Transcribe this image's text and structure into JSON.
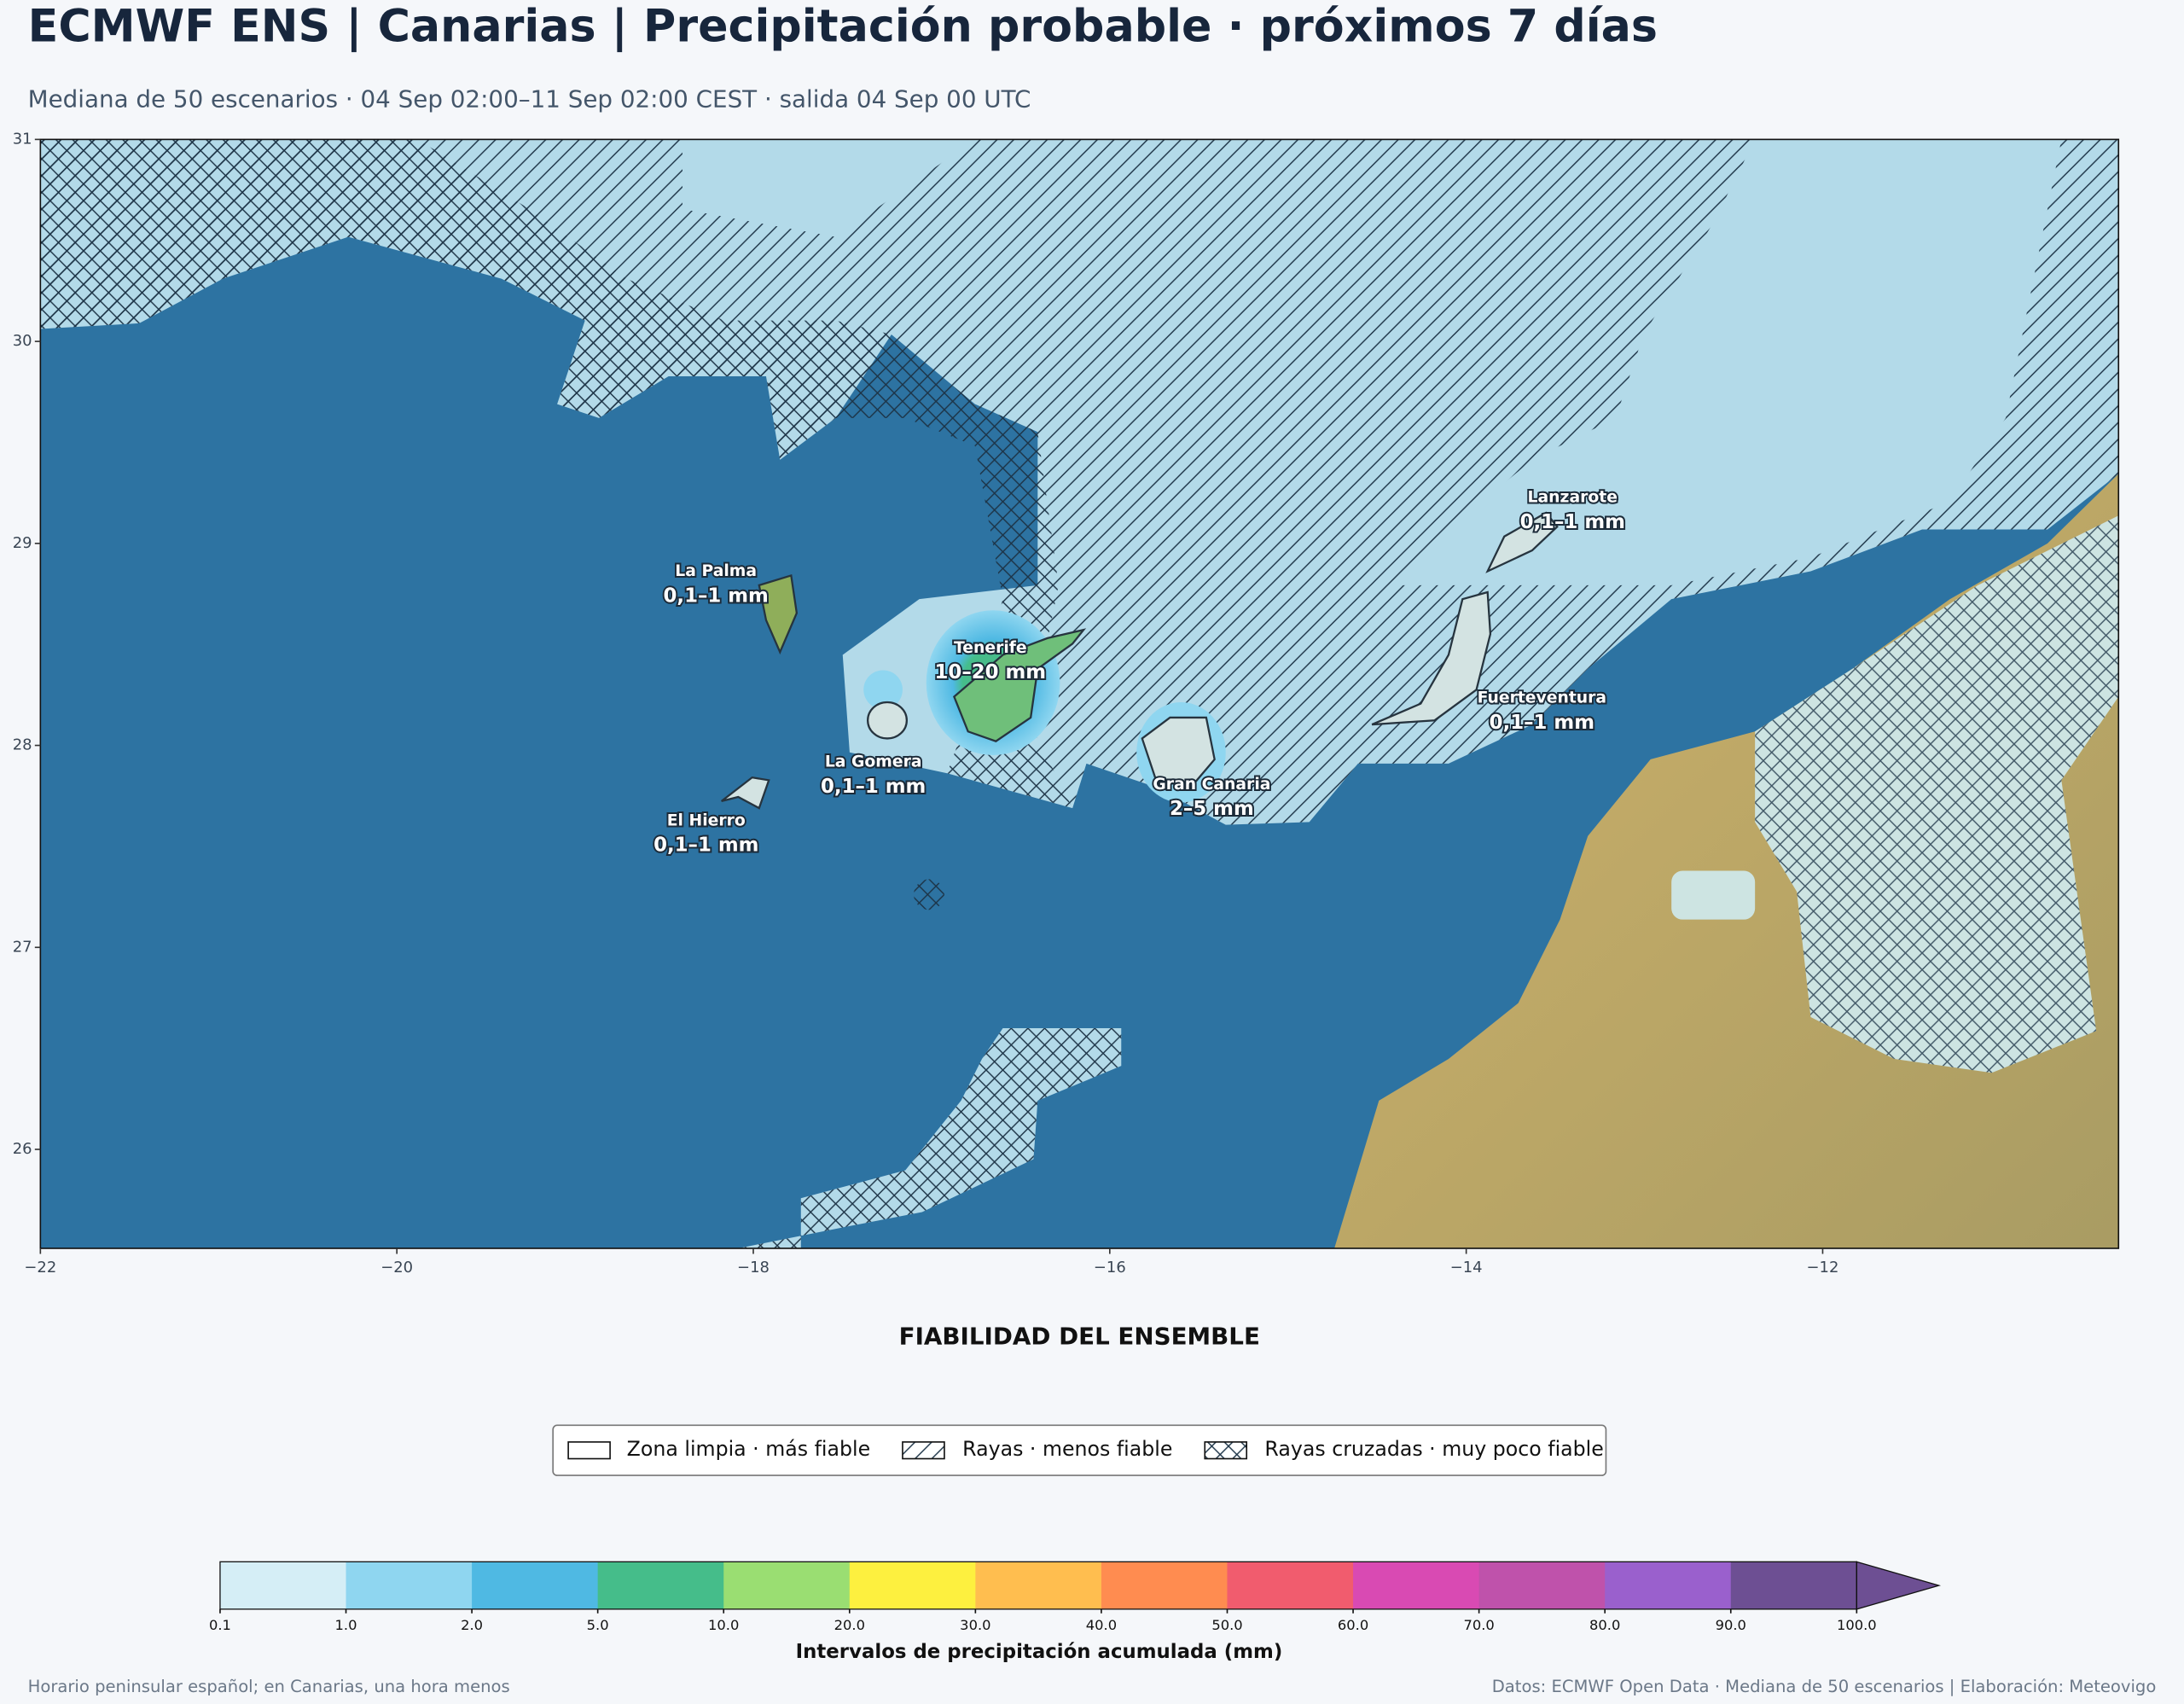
{
  "header": {
    "title": "ECMWF ENS | Canarias | Precipitación probable · próximos 7 días",
    "subtitle": "Mediana de 50 escenarios · 04 Sep 02:00–11 Sep 02:00 CEST · salida 04 Sep 00 UTC"
  },
  "map": {
    "xlim": [
      -22,
      -10.34
    ],
    "ylim": [
      25.51,
      31
    ],
    "xticks": [
      {
        "value": -22,
        "label": "−22"
      },
      {
        "value": -20,
        "label": "−20"
      },
      {
        "value": -18,
        "label": "−18"
      },
      {
        "value": -16,
        "label": "−16"
      },
      {
        "value": -14,
        "label": "−14"
      },
      {
        "value": -12,
        "label": "−12"
      }
    ],
    "yticks": [
      26,
      27,
      28,
      29,
      30,
      31
    ],
    "islands": [
      {
        "name": "La Palma",
        "value_label": "0,1–1 mm"
      },
      {
        "name": "Tenerife",
        "value_label": "10–20 mm"
      },
      {
        "name": "La Gomera",
        "value_label": "0,1–1 mm"
      },
      {
        "name": "El Hierro",
        "value_label": "0,1–1 mm"
      },
      {
        "name": "Gran Canaria",
        "value_label": "2–5 mm"
      },
      {
        "name": "Lanzarote",
        "value_label": "0,1–1 mm"
      },
      {
        "name": "Fuerteventura",
        "value_label": "0,1–1 mm"
      }
    ]
  },
  "legend": {
    "title": "FIABILIDAD DEL ENSEMBLE",
    "entries": [
      "Zona limpia · más fiable",
      "Rayas · menos fiable",
      "Rayas cruzadas · muy poco fiable"
    ]
  },
  "colorbar": {
    "label": "Intervalos de precipitación acumulada (mm)",
    "ticks": [
      0.1,
      {
        "value": 1,
        "label": "1.0"
      },
      {
        "value": 2,
        "label": "2.0"
      },
      {
        "value": 5,
        "label": "5.0"
      },
      {
        "value": 10,
        "label": "10.0"
      },
      {
        "value": 20,
        "label": "20.0"
      },
      {
        "value": 30,
        "label": "30.0"
      },
      {
        "value": 40,
        "label": "40.0"
      },
      {
        "value": 50,
        "label": "50.0"
      },
      {
        "value": 60,
        "label": "60.0"
      },
      {
        "value": 70,
        "label": "70.0"
      },
      {
        "value": 80,
        "label": "80.0"
      },
      {
        "value": 90,
        "label": "90.0"
      },
      {
        "value": 100,
        "label": "100.0"
      }
    ],
    "colors": [
      "#d5eef6",
      "#8fd6f0",
      "#4fb9e3",
      "#45bd8a",
      "#9ade72",
      "#fdf03f",
      "#ffbe4f",
      "#ff8c50",
      "#f15c6e",
      "#d94ab3",
      "#bf52ab",
      "#9a60cd",
      "#6d4f93"
    ]
  },
  "footer": {
    "left": "Horario peninsular español; en Canarias, una hora menos",
    "right": "Datos: ECMWF Open Data · Mediana de 50 escenarios | Elaboración: Meteovigo"
  }
}
